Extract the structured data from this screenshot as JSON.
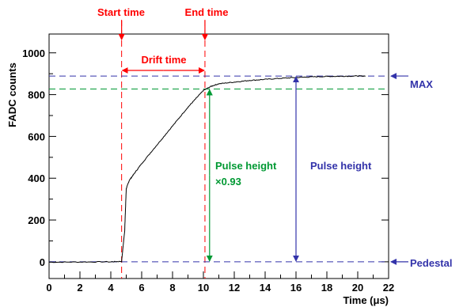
{
  "chart_data": {
    "type": "line",
    "title": "",
    "xlabel": "Time (μs)",
    "ylabel": "FADC counts",
    "xlim": [
      0,
      22
    ],
    "ylim": [
      -80,
      1090
    ],
    "xticks": [
      0,
      2,
      4,
      6,
      8,
      10,
      12,
      14,
      16,
      18,
      20,
      22
    ],
    "yticks": [
      0,
      200,
      400,
      600,
      800,
      1000
    ],
    "grid": false,
    "series": [
      {
        "x": [
          0,
          2,
          4,
          4.7,
          4.9,
          5.0,
          5.2,
          5.5,
          6,
          7,
          8,
          9,
          9.5,
          10,
          10.5,
          11,
          12,
          13,
          14,
          15,
          16,
          17,
          18,
          19,
          20,
          20.5
        ],
        "y": [
          -2,
          -1,
          0,
          2,
          150,
          350,
          390,
          420,
          470,
          560,
          650,
          740,
          780,
          820,
          840,
          852,
          860,
          868,
          873,
          878,
          882,
          885,
          887,
          888,
          889,
          889
        ],
        "color": "#000000"
      }
    ],
    "annotations": {
      "start_time": {
        "label": "Start time",
        "x": 4.7,
        "color": "#ff0000"
      },
      "end_time": {
        "label": "End time",
        "x": 10.1,
        "color": "#ff0000"
      },
      "drift_time": {
        "label": "Drift time",
        "color": "#ff0000"
      },
      "max": {
        "label": "MAX",
        "y": 889,
        "color": "#3333aa"
      },
      "pedestal": {
        "label": "Pedestal",
        "y": 0,
        "color": "#3333aa"
      },
      "pulse_height_093": {
        "line1": "Pulse height",
        "line2": "×0.93",
        "y": 827,
        "color": "#009933"
      },
      "pulse_height": {
        "label": "Pulse height",
        "color": "#3333aa"
      }
    }
  }
}
